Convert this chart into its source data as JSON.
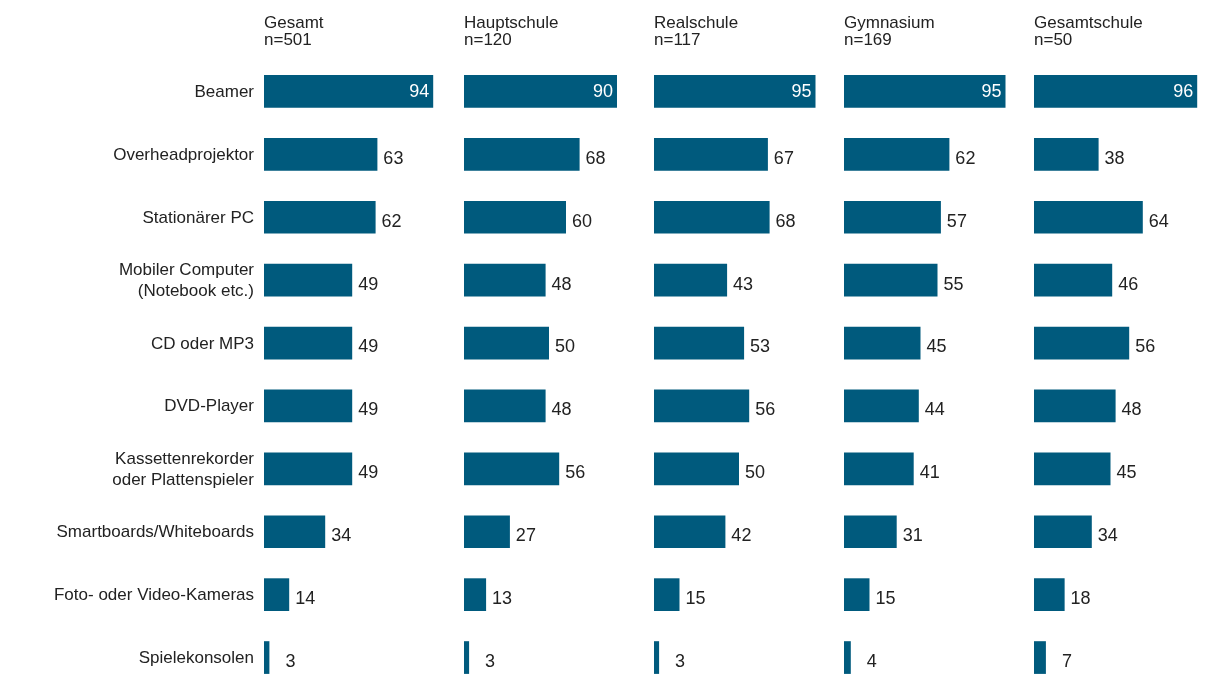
{
  "chart_data": [
    {
      "type": "bar",
      "orientation": "horizontal",
      "title": "Gesamt",
      "subtitle": "n=501",
      "categories": [
        "Beamer",
        "Overheadprojektor",
        "Stationärer PC",
        "Mobiler Computer\n(Notebook etc.)",
        "CD oder MP3",
        "DVD-Player",
        "Kassettenrekorder\noder Plattenspieler",
        "Smartboards/Whiteboards",
        "Foto- oder Video-Kameras",
        "Spielekonsolen"
      ],
      "values": [
        94,
        63,
        62,
        49,
        49,
        49,
        49,
        34,
        14,
        3
      ],
      "color": "#005a7d",
      "data_labels": true,
      "grid": false,
      "tick_labels": "y"
    },
    {
      "type": "bar",
      "orientation": "horizontal",
      "title": "Hauptschule",
      "subtitle": "n=120",
      "categories": [
        null,
        null,
        null,
        null,
        null,
        null,
        null,
        null,
        null,
        null
      ],
      "values": [
        90,
        68,
        60,
        48,
        50,
        48,
        56,
        27,
        13,
        3
      ],
      "color": "#005a7d",
      "data_labels": true,
      "grid": false,
      "tick_labels": false
    },
    {
      "type": "bar",
      "orientation": "horizontal",
      "title": "Realschule",
      "subtitle": "n=117",
      "categories": [
        null,
        null,
        null,
        null,
        null,
        null,
        null,
        null,
        null,
        null
      ],
      "values": [
        95,
        67,
        68,
        43,
        53,
        56,
        50,
        42,
        15,
        3
      ],
      "color": "#005a7d",
      "data_labels": true,
      "grid": false,
      "tick_labels": false
    },
    {
      "type": "bar",
      "orientation": "horizontal",
      "title": "Gymnasium",
      "subtitle": "n=169",
      "categories": [
        null,
        null,
        null,
        null,
        null,
        null,
        null,
        null,
        null,
        null
      ],
      "values": [
        95,
        62,
        57,
        55,
        45,
        44,
        41,
        31,
        15,
        4
      ],
      "color": "#005a7d",
      "data_labels": true,
      "grid": false,
      "tick_labels": false
    },
    {
      "type": "bar",
      "orientation": "horizontal",
      "title": "Gesamtschule",
      "subtitle": "n=50",
      "categories": [
        null,
        null,
        null,
        null,
        null,
        null,
        null,
        null,
        null,
        null
      ],
      "values": [
        96,
        38,
        64,
        46,
        56,
        48,
        45,
        34,
        18,
        7
      ],
      "color": "#005a7d",
      "data_labels": true,
      "grid": false,
      "tick_labels": false
    }
  ]
}
